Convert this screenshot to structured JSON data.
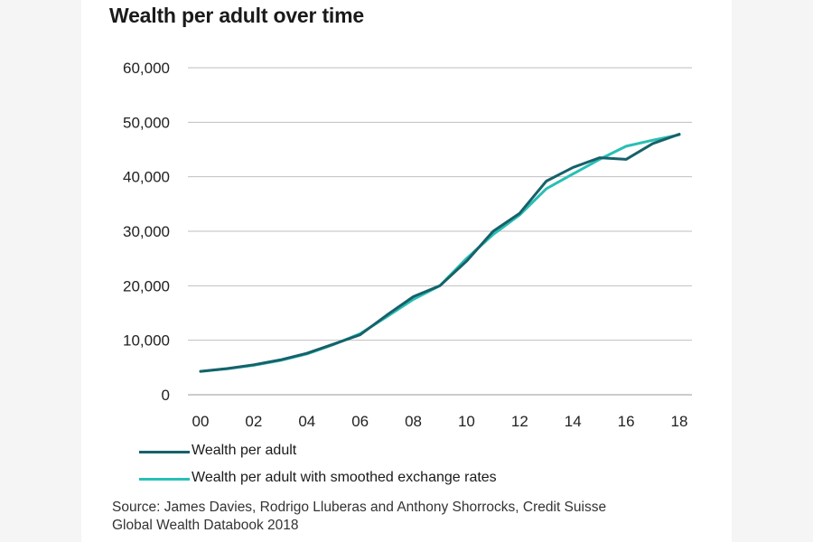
{
  "colors": {
    "series_1": "#17616a",
    "series_2": "#29bfb4",
    "grid": "#bfbfbf",
    "axis": "#999999"
  },
  "chart_data": {
    "type": "line",
    "title": "Wealth per adult over time",
    "x": [
      0,
      1,
      2,
      3,
      4,
      5,
      6,
      7,
      8,
      9,
      10,
      11,
      12,
      13,
      14,
      15,
      16,
      17,
      18
    ],
    "x_tick_values": [
      0,
      2,
      4,
      6,
      8,
      10,
      12,
      14,
      16,
      18
    ],
    "x_tick_labels": [
      "00",
      "02",
      "04",
      "06",
      "08",
      "10",
      "12",
      "14",
      "16",
      "18"
    ],
    "y_tick_values": [
      0,
      10000,
      20000,
      30000,
      40000,
      50000,
      60000
    ],
    "y_tick_labels": [
      "0",
      "10,000",
      "20,000",
      "30,000",
      "40,000",
      "50,000",
      "60,000"
    ],
    "ylim": [
      0,
      60000
    ],
    "xlim": [
      0,
      18
    ],
    "grid": true,
    "legend_position": "bottom",
    "series": [
      {
        "name": "Wealth per adult",
        "color": "#17616a",
        "values": [
          4300,
          4800,
          5500,
          6400,
          7600,
          9300,
          11000,
          14600,
          18000,
          20000,
          24500,
          30000,
          33300,
          39200,
          41700,
          43500,
          43200,
          46100,
          47800
        ]
      },
      {
        "name": "Wealth per adult with smoothed exchange rates",
        "color": "#29bfb4",
        "values": [
          4300,
          4750,
          5400,
          6300,
          7500,
          9200,
          11200,
          14300,
          17500,
          20000,
          25000,
          29400,
          33000,
          37800,
          40500,
          43200,
          45600,
          46700,
          47700
        ]
      }
    ]
  },
  "source": {
    "line1": "Source: James Davies, Rodrigo Lluberas and Anthony Shorrocks, Credit Suisse",
    "line2": "Global Wealth Databook 2018"
  }
}
